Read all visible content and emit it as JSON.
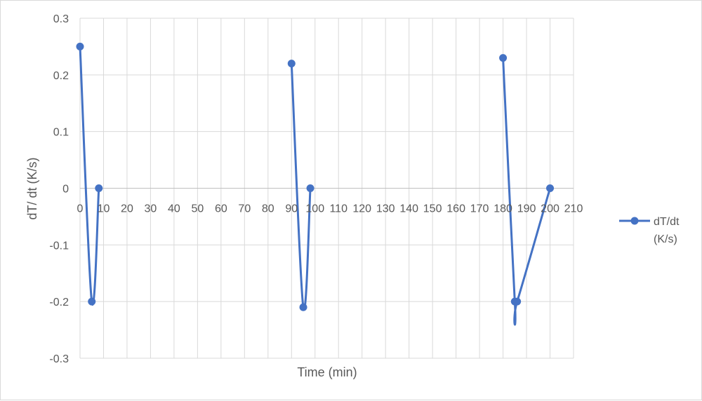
{
  "chart_data": {
    "type": "scatter",
    "subtype": "smooth-lines-with-markers",
    "xlabel": "Time (min)",
    "ylabel": "dT/ dt (K/s)",
    "xlim": [
      0,
      210
    ],
    "ylim": [
      -0.3,
      0.3
    ],
    "x_ticks": [
      0,
      10,
      20,
      30,
      40,
      50,
      60,
      70,
      80,
      90,
      100,
      110,
      120,
      130,
      140,
      150,
      160,
      170,
      180,
      190,
      200,
      210
    ],
    "y_ticks": [
      -0.3,
      -0.2,
      -0.1,
      0,
      0.1,
      0.2,
      0.3
    ],
    "x_tick_labels": [
      "0",
      "10",
      "20",
      "30",
      "40",
      "50",
      "60",
      "70",
      "80",
      "90",
      "100",
      "110",
      "120",
      "130",
      "140",
      "150",
      "160",
      "170",
      "180",
      "190",
      "200",
      "210"
    ],
    "y_tick_labels": [
      "-0.3",
      "-0.2",
      "-0.1",
      "0",
      "0.1",
      "0.2",
      "0.3"
    ],
    "grid": true,
    "legend_position": "right",
    "series": [
      {
        "name": "dT/dt (K/s)",
        "legend_lines": [
          "dT/dt",
          "(K/s)"
        ],
        "color": "#4472c4",
        "segments": [
          [
            {
              "x": 0,
              "y": 0.25
            },
            {
              "x": 5,
              "y": -0.2
            },
            {
              "x": 8,
              "y": 0
            }
          ],
          [
            {
              "x": 90,
              "y": 0.22
            },
            {
              "x": 95,
              "y": -0.21
            },
            {
              "x": 98,
              "y": 0
            }
          ],
          [
            {
              "x": 180,
              "y": 0.23
            },
            {
              "x": 185,
              "y": -0.2
            },
            {
              "x": 186,
              "y": -0.2
            },
            {
              "x": 200,
              "y": 0
            }
          ]
        ]
      }
    ]
  }
}
